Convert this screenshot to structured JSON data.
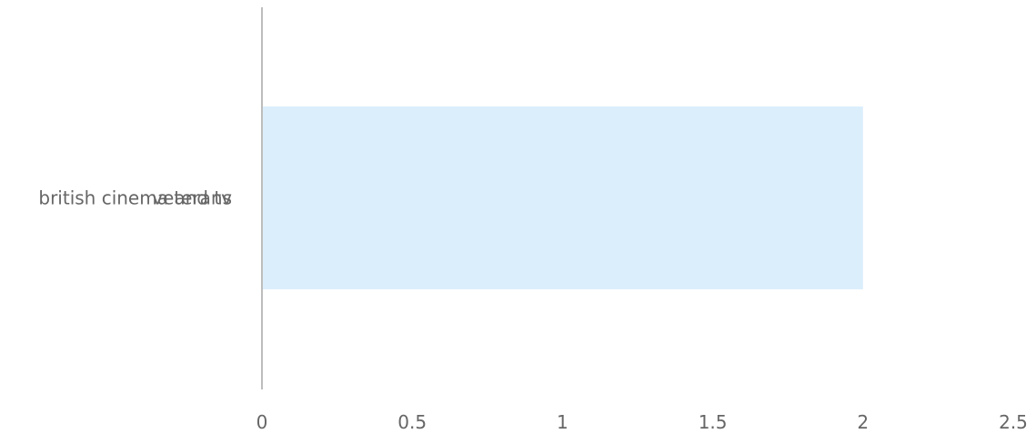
{
  "chart_data": {
    "type": "bar",
    "orientation": "horizontal",
    "categories": [
      "british cinema and tv",
      "veterans"
    ],
    "series": [
      {
        "values": [
          2,
          2
        ]
      }
    ],
    "xlim": [
      0,
      2.5
    ],
    "x_ticks": [
      "0",
      "0.5",
      "1",
      "1.5",
      "2",
      "2.5"
    ],
    "grid": false,
    "colors": {
      "bar": "#dbeefc",
      "axis": "#bdbdbd",
      "text": "#666666"
    }
  }
}
